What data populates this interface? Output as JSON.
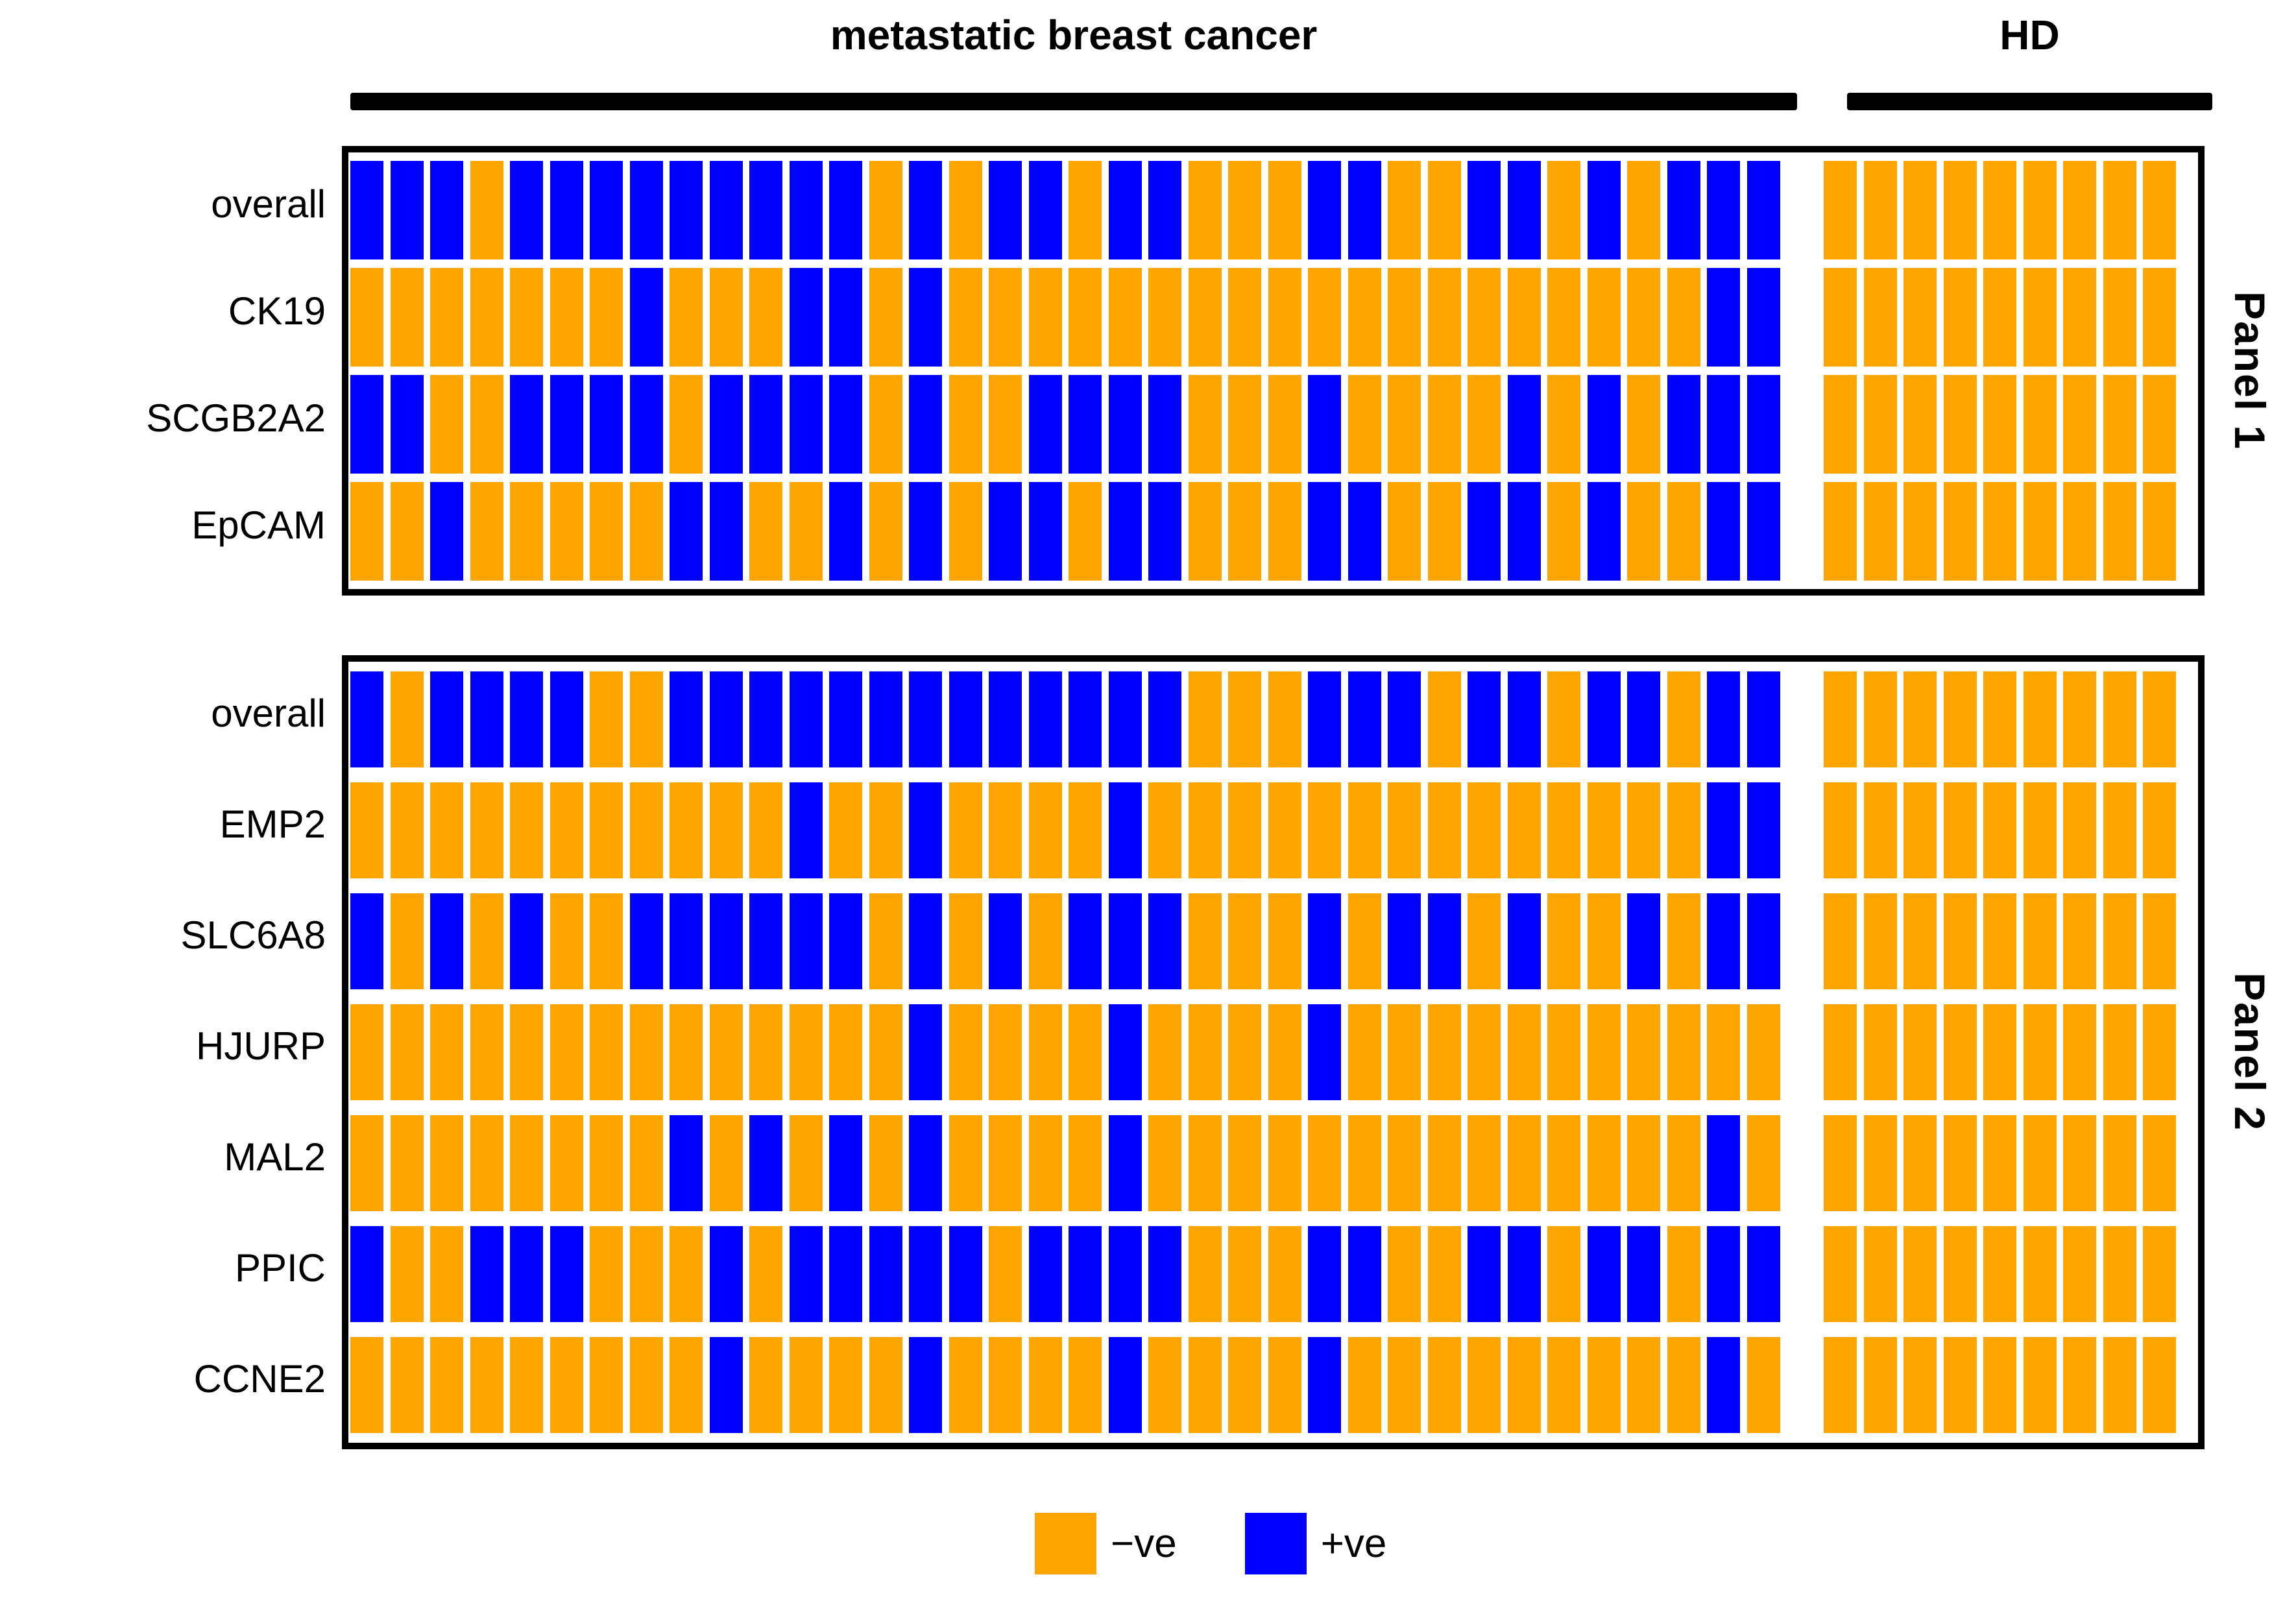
{
  "chart_data": {
    "type": "heatmap",
    "title_groups": [
      {
        "label": "metastatic breast cancer",
        "n_columns": 36
      },
      {
        "label": "HD",
        "n_columns": 9
      }
    ],
    "legend": [
      {
        "label": "−ve",
        "meaning": "negative",
        "color": "#FFA500",
        "symbol": "O"
      },
      {
        "label": "+ve",
        "meaning": "positive",
        "color": "#0000FF",
        "symbol": "B"
      }
    ],
    "cell_encoding": "Each character of mbc/hd strings is one sample column: B = +ve (blue), O = −ve (orange). 36 metastatic breast cancer columns, then 9 healthy donor (HD) columns.",
    "panels": [
      {
        "name": "Panel 1",
        "rows": [
          {
            "label": "overall",
            "mbc": "BBBOBBBBBBBBBOBOBBOBBOOOBBOOBBOBOBBB",
            "hd": "OOOOOOOOO"
          },
          {
            "label": "CK19",
            "mbc": "OOOOOOOBOOOBBOBOOOOOOOOOOOOOOOOOOOBB",
            "hd": "OOOOOOOOO"
          },
          {
            "label": "SCGB2A2",
            "mbc": "BBOOBBBBOBBBBOBOOBBBBOOOBOOOOBOBOBBB",
            "hd": "OOOOOOOOO"
          },
          {
            "label": "EpCAM",
            "mbc": "OOBOOOOOBBOOBOBOBBOBBOOOBBOOBBOBOOBB",
            "hd": "OOOOOOOOO"
          }
        ]
      },
      {
        "name": "Panel 2",
        "rows": [
          {
            "label": "overall",
            "mbc": "BOBBBBOOBBBBBBBBBBBBBOOOBBBOBBOBBOBB",
            "hd": "OOOOOOOOO"
          },
          {
            "label": "EMP2",
            "mbc": "OOOOOOOOOOOBOOBOOOOBOOOOOOOOOOOOOOBB",
            "hd": "OOOOOOOOO"
          },
          {
            "label": "SLC6A8",
            "mbc": "BOBOBOOBBBBBBOBOBOBBBOOOBOBBOBOOBOBB",
            "hd": "OOOOOOOOO"
          },
          {
            "label": "HJURP",
            "mbc": "OOOOOOOOOOOOOOBOOOOBOOOOBOOOOOOOOOOO",
            "hd": "OOOOOOOOO"
          },
          {
            "label": "MAL2",
            "mbc": "OOOOOOOOBOBOBOBOOOOBOOOOOOOOOOOOOOBO",
            "hd": "OOOOOOOOO"
          },
          {
            "label": "PPIC",
            "mbc": "BOOBBBOOOBOBBBBBOBBBBOOOBBOOBBOBBOBB",
            "hd": "OOOOOOOOO"
          },
          {
            "label": "CCNE2",
            "mbc": "OOOOOOOOOBOOOOBOOOOBOOOOBOOOOOOOOOBO",
            "hd": "OOOOOOOOO"
          }
        ]
      }
    ],
    "layout": {
      "grid_gap_between_groups": true,
      "background": "#ffffff",
      "bar_color": "#000000"
    }
  }
}
